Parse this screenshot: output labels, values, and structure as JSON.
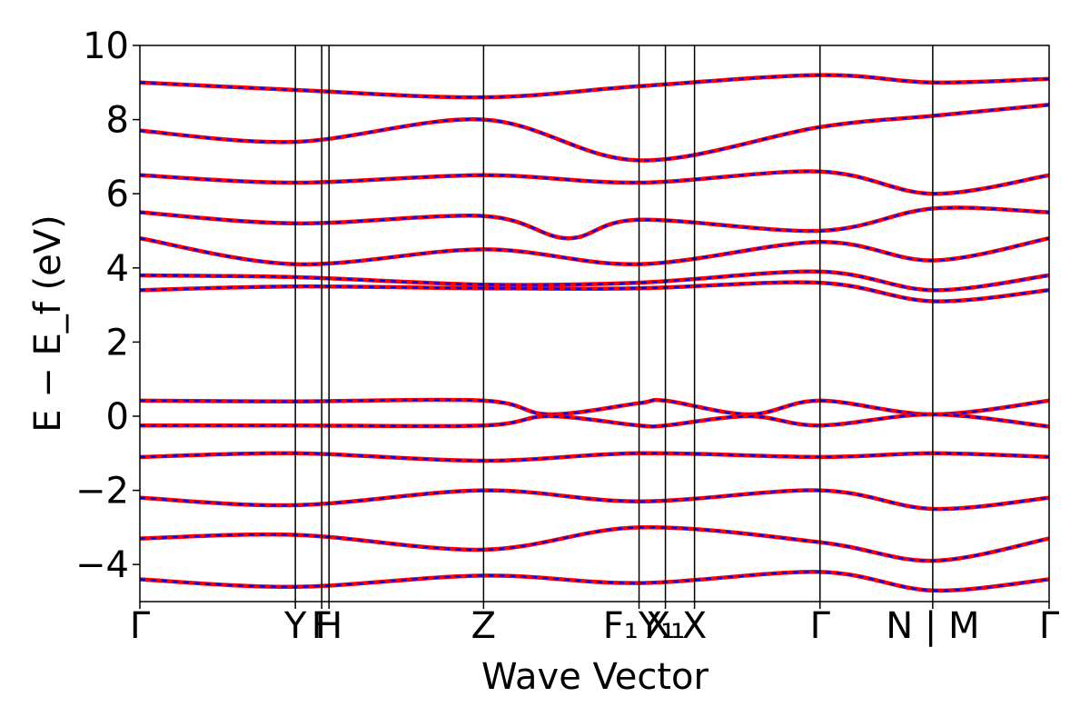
{
  "chart_data": {
    "type": "line",
    "xlabel": "Wave Vector",
    "ylabel": "E − E_f (eV)",
    "ylim": [
      -5,
      10
    ],
    "yticks": [
      -4,
      -2,
      0,
      2,
      4,
      6,
      8,
      10
    ],
    "ytick_labels": [
      "−4",
      "−2",
      "0",
      "2",
      "4",
      "6",
      "8",
      "10"
    ],
    "xlim": [
      0,
      1
    ],
    "high_symmetry_points": [
      {
        "label": "Γ",
        "x": 0.0
      },
      {
        "label": "Y",
        "x": 0.171
      },
      {
        "label": "F",
        "x": 0.2
      },
      {
        "label": "H",
        "x": 0.208
      },
      {
        "label": "Z",
        "x": 0.378
      },
      {
        "label": "F₁Y₁",
        "x": 0.549
      },
      {
        "label": "X₁",
        "x": 0.578
      },
      {
        "label": "X",
        "x": 0.61
      },
      {
        "label": "Γ",
        "x": 0.748
      },
      {
        "label": "N | M",
        "x": 0.872
      },
      {
        "label": "Γ",
        "x": 1.0
      }
    ],
    "grid": false,
    "series_colors": {
      "primary": "#ff0000",
      "overlay": "#0000ff"
    },
    "series": [
      {
        "name": "",
        "values": [
          {
            "x": 0.0,
            "y": 0.42
          },
          {
            "x": 0.171,
            "y": 0.4
          },
          {
            "x": 0.378,
            "y": 0.42
          },
          {
            "x": 0.45,
            "y": 0.05
          },
          {
            "x": 0.549,
            "y": 0.35
          },
          {
            "x": 0.578,
            "y": 0.42
          },
          {
            "x": 0.67,
            "y": 0.05
          },
          {
            "x": 0.748,
            "y": 0.42
          },
          {
            "x": 0.872,
            "y": 0.05
          },
          {
            "x": 1.0,
            "y": 0.42
          }
        ]
      },
      {
        "name": "",
        "values": [
          {
            "x": 0.0,
            "y": -0.25
          },
          {
            "x": 0.171,
            "y": -0.25
          },
          {
            "x": 0.378,
            "y": -0.25
          },
          {
            "x": 0.45,
            "y": 0.0
          },
          {
            "x": 0.549,
            "y": -0.25
          },
          {
            "x": 0.578,
            "y": -0.25
          },
          {
            "x": 0.67,
            "y": 0.0
          },
          {
            "x": 0.748,
            "y": -0.25
          },
          {
            "x": 0.872,
            "y": 0.05
          },
          {
            "x": 1.0,
            "y": -0.28
          }
        ]
      },
      {
        "name": "",
        "values": [
          {
            "x": 0.0,
            "y": 3.4
          },
          {
            "x": 0.171,
            "y": 3.5
          },
          {
            "x": 0.378,
            "y": 3.45
          },
          {
            "x": 0.549,
            "y": 3.45
          },
          {
            "x": 0.748,
            "y": 3.6
          },
          {
            "x": 0.872,
            "y": 3.1
          },
          {
            "x": 1.0,
            "y": 3.4
          }
        ]
      },
      {
        "name": "",
        "values": [
          {
            "x": 0.0,
            "y": 3.8
          },
          {
            "x": 0.171,
            "y": 3.75
          },
          {
            "x": 0.378,
            "y": 3.55
          },
          {
            "x": 0.549,
            "y": 3.6
          },
          {
            "x": 0.748,
            "y": 3.9
          },
          {
            "x": 0.872,
            "y": 3.4
          },
          {
            "x": 1.0,
            "y": 3.8
          }
        ]
      },
      {
        "name": "",
        "values": [
          {
            "x": 0.0,
            "y": 4.8
          },
          {
            "x": 0.171,
            "y": 4.1
          },
          {
            "x": 0.378,
            "y": 4.5
          },
          {
            "x": 0.549,
            "y": 4.1
          },
          {
            "x": 0.748,
            "y": 4.7
          },
          {
            "x": 0.872,
            "y": 4.2
          },
          {
            "x": 1.0,
            "y": 4.8
          }
        ]
      },
      {
        "name": "",
        "values": [
          {
            "x": 0.0,
            "y": 5.5
          },
          {
            "x": 0.171,
            "y": 5.2
          },
          {
            "x": 0.378,
            "y": 5.4
          },
          {
            "x": 0.47,
            "y": 4.8
          },
          {
            "x": 0.549,
            "y": 5.3
          },
          {
            "x": 0.748,
            "y": 5.0
          },
          {
            "x": 0.872,
            "y": 5.6
          },
          {
            "x": 1.0,
            "y": 5.5
          }
        ]
      },
      {
        "name": "",
        "values": [
          {
            "x": 0.0,
            "y": 6.5
          },
          {
            "x": 0.171,
            "y": 6.3
          },
          {
            "x": 0.378,
            "y": 6.5
          },
          {
            "x": 0.549,
            "y": 6.3
          },
          {
            "x": 0.748,
            "y": 6.6
          },
          {
            "x": 0.872,
            "y": 6.0
          },
          {
            "x": 1.0,
            "y": 6.5
          }
        ]
      },
      {
        "name": "",
        "values": [
          {
            "x": 0.0,
            "y": 7.7
          },
          {
            "x": 0.171,
            "y": 7.4
          },
          {
            "x": 0.378,
            "y": 8.0
          },
          {
            "x": 0.549,
            "y": 6.9
          },
          {
            "x": 0.748,
            "y": 7.8
          },
          {
            "x": 0.872,
            "y": 8.1
          },
          {
            "x": 1.0,
            "y": 8.4
          }
        ]
      },
      {
        "name": "",
        "values": [
          {
            "x": 0.0,
            "y": 9.0
          },
          {
            "x": 0.171,
            "y": 8.8
          },
          {
            "x": 0.378,
            "y": 8.6
          },
          {
            "x": 0.549,
            "y": 8.9
          },
          {
            "x": 0.748,
            "y": 9.2
          },
          {
            "x": 0.872,
            "y": 9.0
          },
          {
            "x": 1.0,
            "y": 9.1
          }
        ]
      },
      {
        "name": "",
        "values": [
          {
            "x": 0.0,
            "y": -1.1
          },
          {
            "x": 0.171,
            "y": -1.0
          },
          {
            "x": 0.378,
            "y": -1.2
          },
          {
            "x": 0.549,
            "y": -1.0
          },
          {
            "x": 0.748,
            "y": -1.1
          },
          {
            "x": 0.872,
            "y": -1.0
          },
          {
            "x": 1.0,
            "y": -1.1
          }
        ]
      },
      {
        "name": "",
        "values": [
          {
            "x": 0.0,
            "y": -2.2
          },
          {
            "x": 0.171,
            "y": -2.4
          },
          {
            "x": 0.378,
            "y": -2.0
          },
          {
            "x": 0.549,
            "y": -2.3
          },
          {
            "x": 0.748,
            "y": -2.0
          },
          {
            "x": 0.872,
            "y": -2.5
          },
          {
            "x": 1.0,
            "y": -2.2
          }
        ]
      },
      {
        "name": "",
        "values": [
          {
            "x": 0.0,
            "y": -3.3
          },
          {
            "x": 0.171,
            "y": -3.2
          },
          {
            "x": 0.378,
            "y": -3.6
          },
          {
            "x": 0.549,
            "y": -3.0
          },
          {
            "x": 0.748,
            "y": -3.4
          },
          {
            "x": 0.872,
            "y": -3.9
          },
          {
            "x": 1.0,
            "y": -3.3
          }
        ]
      },
      {
        "name": "",
        "values": [
          {
            "x": 0.0,
            "y": -4.4
          },
          {
            "x": 0.171,
            "y": -4.6
          },
          {
            "x": 0.378,
            "y": -4.3
          },
          {
            "x": 0.549,
            "y": -4.5
          },
          {
            "x": 0.748,
            "y": -4.2
          },
          {
            "x": 0.872,
            "y": -4.7
          },
          {
            "x": 1.0,
            "y": -4.4
          }
        ]
      }
    ]
  }
}
